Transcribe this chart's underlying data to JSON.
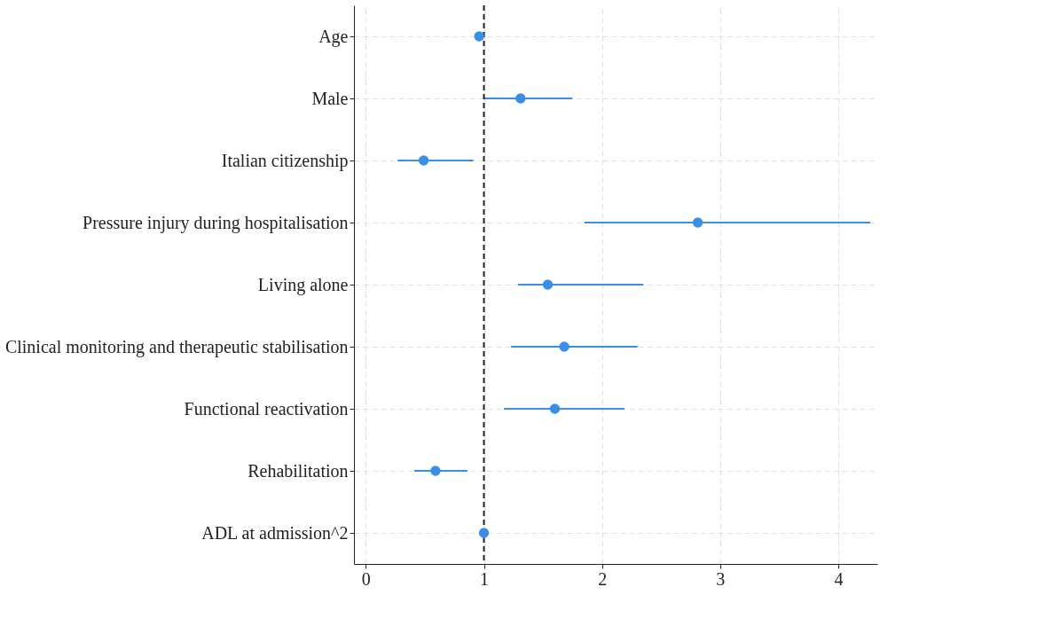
{
  "chart_data": {
    "type": "scatter",
    "orientation": "horizontal",
    "categories": [
      "Age",
      "Male",
      "Italian citizenship",
      "Pressure injury during hospitalisation",
      "Living alone",
      "Clinical monitoring and therapeutic stabilisation",
      "Functional reactivation",
      "Rehabilitation",
      "ADL at admission^2"
    ],
    "values": [
      0.96,
      1.31,
      0.49,
      2.81,
      1.54,
      1.68,
      1.6,
      0.59,
      1.0
    ],
    "errors": [
      null,
      [
        1.0,
        1.75
      ],
      [
        0.27,
        0.91
      ],
      [
        1.85,
        4.27
      ],
      [
        1.29,
        2.35
      ],
      [
        1.23,
        2.3
      ],
      [
        1.17,
        2.19
      ],
      [
        0.41,
        0.86
      ],
      null
    ],
    "color": "#3a8ee6",
    "marker": "circle",
    "xlim": [
      -0.1,
      4.33
    ],
    "xticks": [
      0,
      1,
      2,
      3,
      4
    ],
    "grid": true,
    "ref_lines": [
      {
        "axis": "x",
        "value": 1,
        "color": "#222222",
        "line_style": "dashed"
      }
    ]
  }
}
